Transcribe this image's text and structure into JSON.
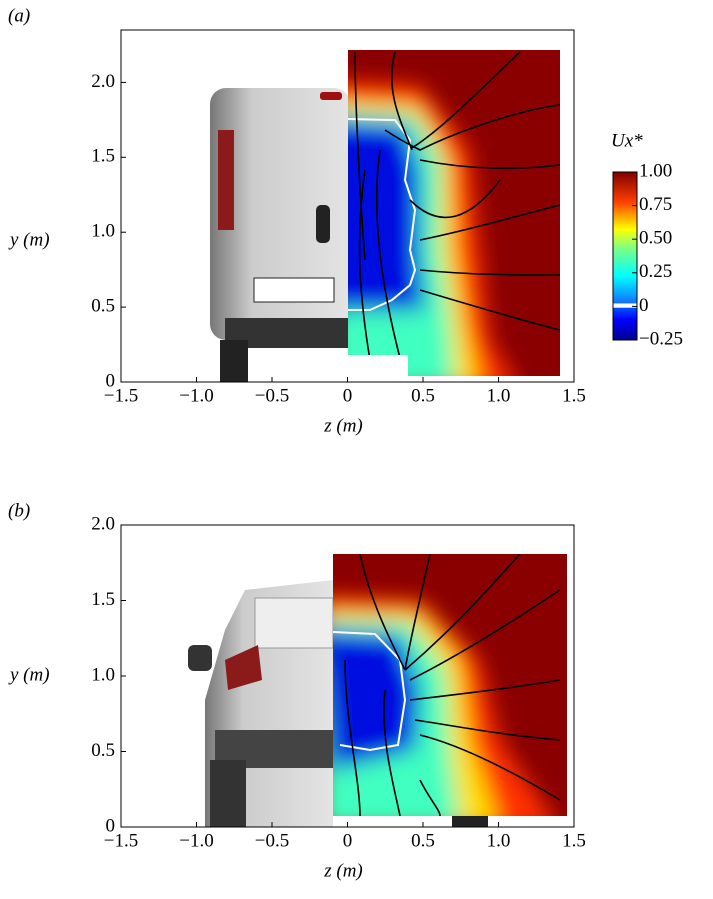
{
  "chart_data": [
    {
      "type": "field",
      "panel_label": "(a)",
      "xlabel": "z (m)",
      "ylabel": "y (m)",
      "xlim": [
        -1.5,
        1.5
      ],
      "ylim": [
        0,
        2.35
      ],
      "xticks": [
        {
          "value": -1.5,
          "label": "−1.5"
        },
        {
          "value": -1,
          "label": "−1.0"
        },
        {
          "value": -0.5,
          "label": "−0.5"
        },
        0,
        0.5,
        {
          "value": 1,
          "label": "1.0"
        },
        1.5
      ],
      "yticks": [
        0,
        0.5,
        {
          "value": 1,
          "label": "1.0"
        },
        1.5,
        {
          "value": 2,
          "label": "2.0"
        }
      ]
    },
    {
      "type": "field",
      "panel_label": "(b)",
      "xlabel": "z (m)",
      "ylabel": "y (m)",
      "xlim": [
        -1.5,
        1.5
      ],
      "ylim": [
        0,
        2
      ],
      "xticks": [
        {
          "value": -1.5,
          "label": "−1.5"
        },
        {
          "value": -1,
          "label": "−1.0"
        },
        {
          "value": -0.5,
          "label": "−0.5"
        },
        0,
        0.5,
        {
          "value": 1,
          "label": "1.0"
        },
        1.5
      ],
      "yticks": [
        0,
        0.5,
        {
          "value": 1,
          "label": "1.0"
        },
        1.5,
        {
          "value": 2,
          "label": "2.0"
        }
      ]
    },
    {
      "type": "colorbar",
      "title": "Ux*",
      "clim": [
        -0.25,
        1
      ],
      "ticks": [
        {
          "value": 1,
          "label": "1.00"
        },
        0.75,
        {
          "value": 0.5,
          "label": "0.50"
        },
        0.25,
        0,
        {
          "value": -0.25,
          "label": "−0.25"
        }
      ]
    }
  ]
}
